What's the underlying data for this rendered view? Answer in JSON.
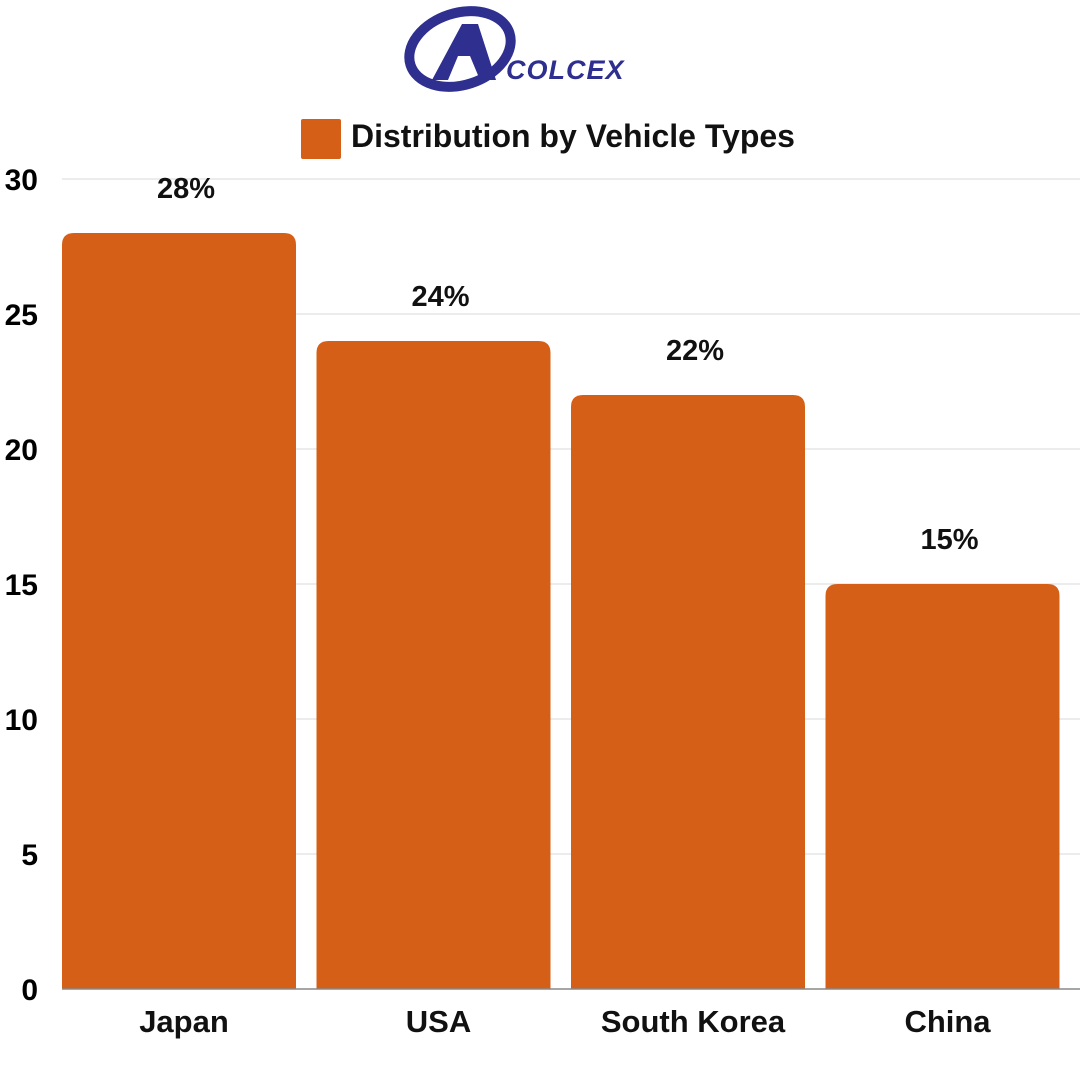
{
  "logo": {
    "text": "COLCEX",
    "color": "#2e2f8f"
  },
  "legend": {
    "position": "top-center"
  },
  "chart_data": {
    "type": "bar",
    "categories": [
      "Japan",
      "USA",
      "South Korea",
      "China"
    ],
    "series": [
      {
        "name": "Distribution by Vehicle Types",
        "values": [
          28,
          24,
          22,
          15
        ],
        "data_labels": [
          "28%",
          "24%",
          "22%",
          "15%"
        ],
        "color": "#d55f17"
      }
    ],
    "ylim": [
      0,
      30
    ],
    "yticks": [
      0,
      5,
      10,
      15,
      20,
      25,
      30
    ],
    "grid": true
  }
}
